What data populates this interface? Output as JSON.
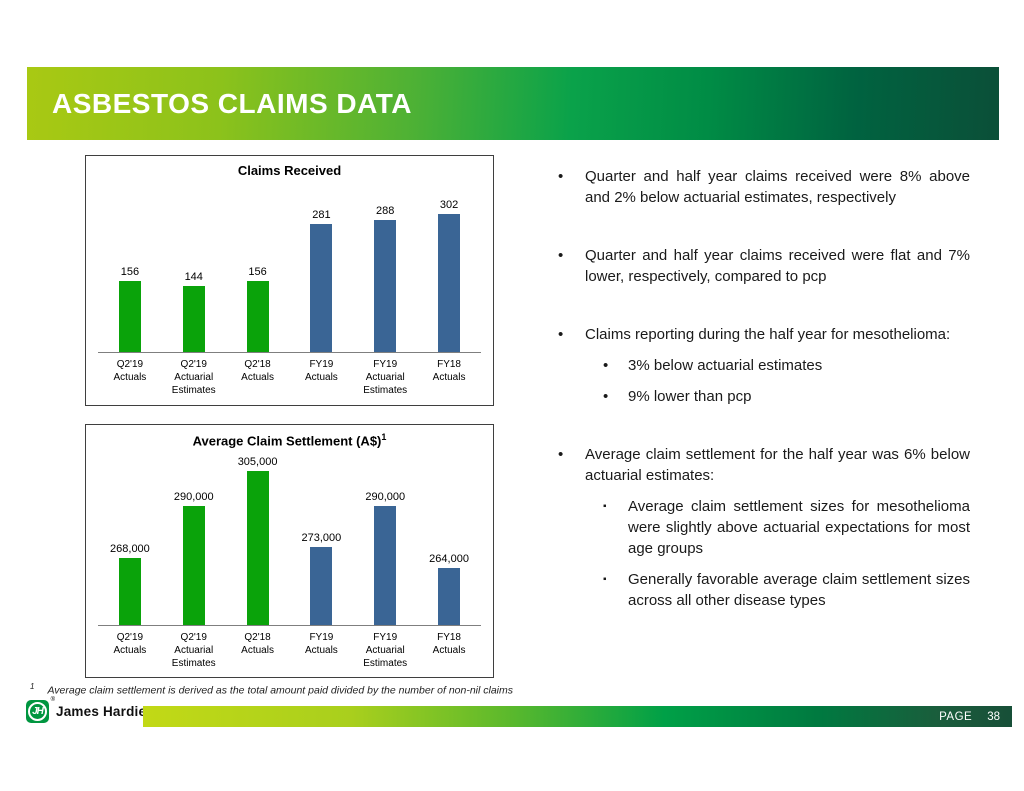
{
  "title_bar": {
    "title": "ASBESTOS CLAIMS DATA"
  },
  "colors": {
    "green_bar": "#0aa30a",
    "blue_bar": "#3a6595",
    "header_gradient_start": "#a9c913",
    "header_gradient_end": "#0b4f38",
    "footer_gradient_start": "#c2d916",
    "footer_gradient_end": "#174f38",
    "logo_green": "#009640"
  },
  "chart_data": [
    {
      "type": "bar",
      "title": "Claims Received",
      "title_superscript": "",
      "categories": [
        "Q2'19\nActuals",
        "Q2'19\nActuarial\nEstimates",
        "Q2'18\nActuals",
        "FY19\nActuals",
        "FY19\nActuarial\nEstimates",
        "FY18\nActuals"
      ],
      "values": [
        156,
        144,
        156,
        281,
        288,
        302
      ],
      "value_labels": [
        "156",
        "144",
        "156",
        "281",
        "288",
        "302"
      ],
      "bar_colors": [
        "green",
        "green",
        "green",
        "blue",
        "blue",
        "blue"
      ],
      "ylim": [
        0,
        350
      ],
      "xlabel": "",
      "ylabel": "",
      "grid": false,
      "legend": "none"
    },
    {
      "type": "bar",
      "title": "Average Claim Settlement (A$)",
      "title_superscript": "1",
      "categories": [
        "Q2'19\nActuals",
        "Q2'19\nActuarial\nEstimates",
        "Q2'18\nActuals",
        "FY19\nActuals",
        "FY19\nActuarial\nEstimates",
        "FY18\nActuals"
      ],
      "values": [
        268000,
        290000,
        305000,
        273000,
        290000,
        264000
      ],
      "value_labels": [
        "268,000",
        "290,000",
        "305,000",
        "273,000",
        "290,000",
        "264,000"
      ],
      "bar_colors": [
        "green",
        "green",
        "green",
        "blue",
        "blue",
        "blue"
      ],
      "ylim": [
        240000,
        320000
      ],
      "xlabel": "",
      "ylabel": "",
      "grid": false,
      "legend": "none"
    }
  ],
  "bullets": [
    {
      "marker": "•",
      "text": "Quarter and half year claims received were 8% above and 2% below actuarial estimates, respectively",
      "sub": []
    },
    {
      "marker": "•",
      "text": "Quarter and half year claims received were flat and 7% lower, respectively, compared to pcp",
      "sub": []
    },
    {
      "marker": "•",
      "text": "Claims reporting during the half year for mesothelioma:",
      "sub": [
        {
          "marker": "•",
          "style": "round",
          "text": "3% below actuarial estimates"
        },
        {
          "marker": "•",
          "style": "round",
          "text": "9% lower than pcp"
        }
      ]
    },
    {
      "marker": "•",
      "text": "Average claim settlement for the half year was 6% below actuarial estimates:",
      "sub": [
        {
          "marker": "▪",
          "style": "square",
          "text": "Average claim settlement sizes for mesothelioma were slightly above actuarial expectations for most age groups"
        },
        {
          "marker": "▪",
          "style": "square",
          "text": "Generally favorable average claim settlement sizes across all other disease types"
        }
      ]
    }
  ],
  "footnote": {
    "marker": "1",
    "text": "Average claim settlement is derived as the total amount paid divided by the number of non-nil claims"
  },
  "footer": {
    "logo_monogram": "JH",
    "registered": "®",
    "brand": "James Hardie",
    "page_label": "PAGE",
    "page_number": "38"
  }
}
